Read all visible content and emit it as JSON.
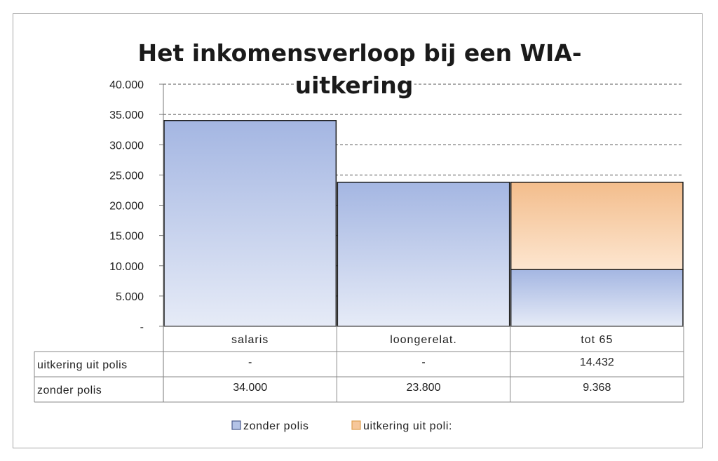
{
  "chart_data": {
    "type": "bar",
    "stacked": true,
    "title_lines": [
      "Het inkomensverloop bij een WIA-",
      "uitkering"
    ],
    "categories": [
      "salaris",
      "loongerelat.",
      "tot 65"
    ],
    "series": [
      {
        "name": "zonder polis",
        "values": [
          34000,
          23800,
          9368
        ],
        "color": "#b4c3e6",
        "labels": [
          "34.000",
          "23.800",
          "9.368"
        ]
      },
      {
        "name": "uitkering uit polis",
        "values": [
          0,
          0,
          14432
        ],
        "color": "#f6c79a",
        "labels": [
          "-",
          "-",
          "14.432"
        ]
      }
    ],
    "ylim": [
      0,
      40000
    ],
    "ticks": [
      {
        "value": 40000,
        "label": "40.000"
      },
      {
        "value": 35000,
        "label": "35.000"
      },
      {
        "value": 30000,
        "label": "30.000"
      },
      {
        "value": 25000,
        "label": "25.000"
      },
      {
        "value": 20000,
        "label": "20.000"
      },
      {
        "value": 15000,
        "label": "15.000"
      },
      {
        "value": 10000,
        "label": "10.000"
      },
      {
        "value": 5000,
        "label": "5.000"
      },
      {
        "value": 0,
        "label": "-"
      }
    ],
    "grid": "dashed-horizontal",
    "legend": {
      "position": "bottom",
      "items": [
        "zonder polis",
        "uitkering uit poli:"
      ]
    },
    "table_row_labels": [
      "uitkering uit polis",
      "zonder polis"
    ]
  }
}
